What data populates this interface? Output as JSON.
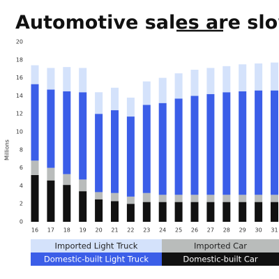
{
  "chart_data": {
    "type": "stacked_bar",
    "title": "Automotive sales are slowl",
    "y_label": "Millions",
    "categories": [
      "16",
      "17",
      "18",
      "19",
      "20",
      "21",
      "22",
      "23",
      "24",
      "25",
      "26",
      "27",
      "28",
      "29",
      "30",
      "31"
    ],
    "series": [
      {
        "name": "Domestic-built Car",
        "color": "#111111",
        "values": [
          5.2,
          4.6,
          4.1,
          3.4,
          2.5,
          2.3,
          2.0,
          2.2,
          2.2,
          2.2,
          2.2,
          2.2,
          2.2,
          2.2,
          2.2,
          2.2
        ]
      },
      {
        "name": "Imported Car",
        "color": "#b9bcbb",
        "values": [
          1.6,
          1.4,
          1.2,
          1.3,
          0.8,
          0.9,
          0.8,
          1.0,
          0.8,
          0.8,
          0.8,
          0.8,
          0.8,
          0.8,
          0.8,
          0.8
        ]
      },
      {
        "name": "Domestic-built Light Truck",
        "color": "#3b5ee8",
        "values": [
          8.5,
          8.7,
          9.2,
          9.7,
          8.7,
          9.2,
          8.9,
          9.8,
          10.2,
          10.7,
          11.0,
          11.2,
          11.4,
          11.5,
          11.6,
          11.6
        ]
      },
      {
        "name": "Imported Light Truck",
        "color": "#d4e2fb",
        "values": [
          2.1,
          2.4,
          2.7,
          2.7,
          2.4,
          2.5,
          2.1,
          2.6,
          2.8,
          2.8,
          2.9,
          2.9,
          2.9,
          3.0,
          3.0,
          3.1
        ]
      }
    ],
    "ylim": [
      0,
      20
    ],
    "yticks": [
      0,
      2,
      4,
      6,
      8,
      10,
      12,
      14,
      16,
      18,
      20
    ]
  }
}
